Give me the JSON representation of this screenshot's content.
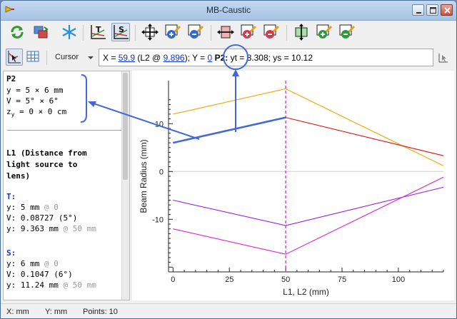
{
  "window": {
    "title": "MB-Caustic"
  },
  "toolbar": {
    "buttons": [
      {
        "name": "refresh-icon"
      },
      {
        "name": "swap-icon"
      },
      {
        "name": "snowflake-icon"
      },
      {
        "name": "tangential-axis-icon"
      },
      {
        "name": "sagittal-axis-icon"
      },
      {
        "name": "fit-all-icon"
      },
      {
        "name": "zoom-in-icon"
      },
      {
        "name": "zoom-out-icon"
      },
      {
        "name": "fit-x-icon"
      },
      {
        "name": "zoom-in-x-icon"
      },
      {
        "name": "zoom-out-x-icon"
      },
      {
        "name": "fit-y-icon"
      },
      {
        "name": "zoom-in-y-icon"
      },
      {
        "name": "zoom-out-y-icon"
      }
    ]
  },
  "mode": {
    "selected": "Cursor"
  },
  "readout": {
    "x_prefix": "X = ",
    "x_value": "59.9",
    "x_mid": " (L2 @ ",
    "x_at": "9.896",
    "y_prefix": "); Y = ",
    "y_value": "0",
    "point_label": "P2:",
    "rest": " yt = 8.308; ys = 10.12"
  },
  "info": {
    "p2_title": "P2",
    "p2_y": "y = 5 × 6 mm",
    "p2_v": "V = 5° × 6°",
    "p2_z_pre": "z",
    "p2_z_sub": "y",
    "p2_z_post": " = 0 × 0 cm",
    "l1_title_1": "L1 (Distance from",
    "l1_title_2": "light source to",
    "l1_title_3": "lens)",
    "t_header": "T:",
    "t_y": "y: 5 mm",
    "t_y_at": " @ 0",
    "t_v": "V: 0.08727 (5°)",
    "t_y2": "y: 9.363 mm",
    "t_y2_at": " @ 50 mm",
    "s_header": "S:",
    "s_y": "y: 6 mm",
    "s_y_at": " @ 0",
    "s_v": "V: 0.1047 (6°)",
    "s_y2": "y: 11.24 mm",
    "s_y2_at": " @ 50 mm"
  },
  "status": {
    "x_unit": "X: mm",
    "y_unit": "Y: mm",
    "points": "Points: 10"
  },
  "chart_data": {
    "type": "line",
    "xlabel": "L1, L2 (mm)",
    "ylabel": "Beam Radius (mm)",
    "xlim": [
      -2,
      120
    ],
    "ylim": [
      -21,
      19
    ],
    "xticks": [
      0,
      25,
      50,
      75,
      100
    ],
    "yticks": [
      -10,
      0,
      10
    ],
    "grid": false,
    "zero_line": true,
    "cursor_x": 50,
    "series": [
      {
        "color": "#f0a500",
        "x": [
          0,
          50,
          120
        ],
        "y": [
          12,
          17.3,
          1.2
        ]
      },
      {
        "color": "#dd1111",
        "x": [
          50,
          120
        ],
        "y": [
          11.3,
          3.3
        ]
      },
      {
        "color": "#4466dd",
        "x": [
          0,
          50
        ],
        "y": [
          6,
          11.3
        ]
      },
      {
        "color": "#9922dd",
        "x": [
          0,
          50,
          120
        ],
        "y": [
          -6,
          -11.3,
          -3.3
        ]
      },
      {
        "color": "#dd22cc",
        "x": [
          0,
          50,
          120
        ],
        "y": [
          -12,
          -17.3,
          -1.2
        ]
      }
    ]
  },
  "colors": {
    "accent": "#4466dd",
    "cursor": "#cc33cc"
  }
}
